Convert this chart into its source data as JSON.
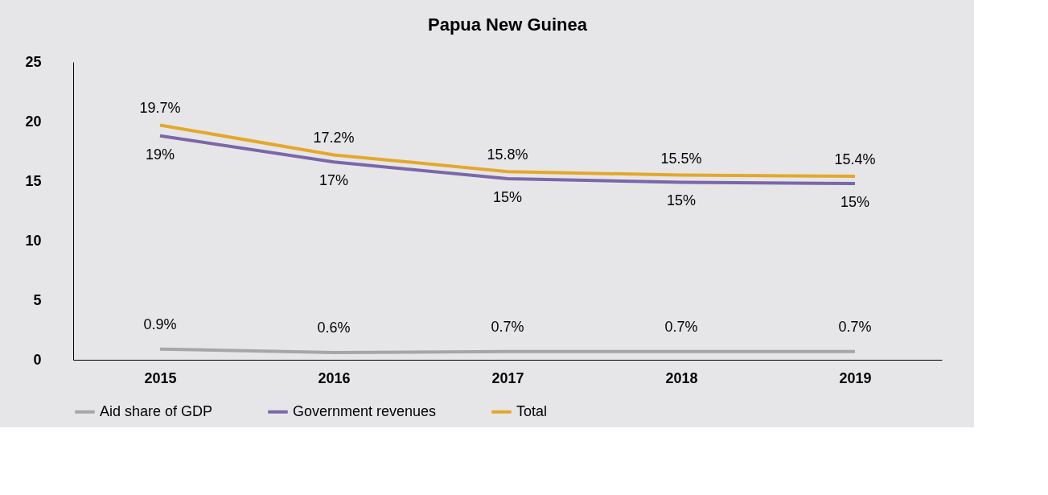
{
  "chart_data": {
    "type": "line",
    "title": "Papua New Guinea",
    "categories": [
      "2015",
      "2016",
      "2017",
      "2018",
      "2019"
    ],
    "series": [
      {
        "name": "Aid share of GDP",
        "color": "#a6a6a6",
        "values": [
          0.9,
          0.6,
          0.7,
          0.7,
          0.7
        ],
        "value_labels": [
          "0.9%",
          "0.6%",
          "0.7%",
          "0.7%",
          "0.7%"
        ]
      },
      {
        "name": "Government revenues",
        "color": "#7b67a8",
        "values": [
          18.8,
          16.6,
          15.2,
          14.9,
          14.8
        ],
        "value_labels": [
          "19%",
          "17%",
          "15%",
          "15%",
          "15%"
        ]
      },
      {
        "name": "Total",
        "color": "#e3a82b",
        "values": [
          19.7,
          17.2,
          15.8,
          15.5,
          15.4
        ],
        "value_labels": [
          "19.7%",
          "17.2%",
          "15.8%",
          "15.5%",
          "15.4%"
        ]
      }
    ],
    "ylim": [
      0,
      25
    ],
    "yticks": [
      0,
      5,
      10,
      15,
      20,
      25
    ],
    "grid": false,
    "legend": "bottom",
    "marker": "none",
    "line_style": "solid"
  }
}
